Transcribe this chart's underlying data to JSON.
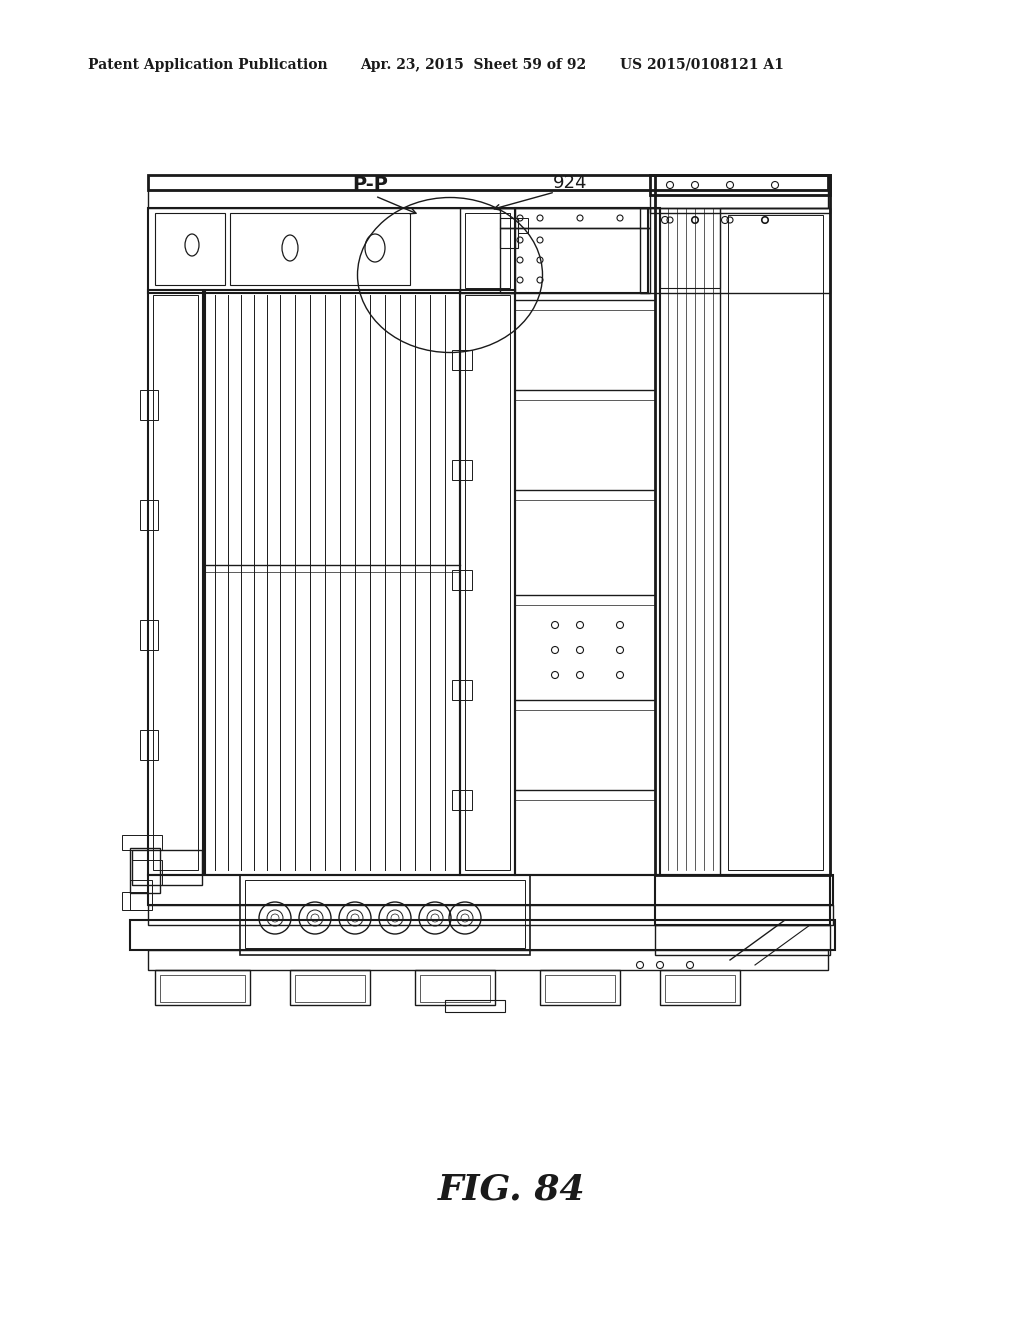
{
  "header_left": "Patent Application Publication",
  "header_middle": "Apr. 23, 2015  Sheet 59 of 92",
  "header_right": "US 2015/0108121 A1",
  "figure_label": "FIG. 84",
  "label_924": "924",
  "label_PP": "P-P",
  "bg_color": "#ffffff",
  "line_color": "#1a1a1a",
  "header_fontsize": 10,
  "figure_label_fontsize": 26
}
